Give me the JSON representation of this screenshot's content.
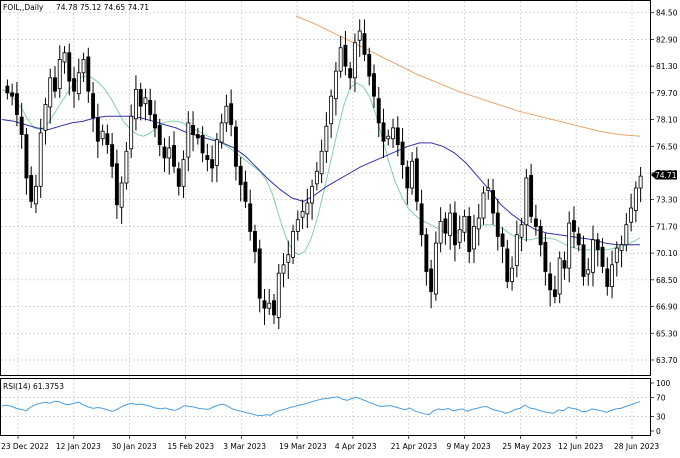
{
  "header": {
    "symbol": "FOIL,,Daily",
    "ohlc": "74.78 75.12 74.65 74.71"
  },
  "rsi_label": "RSI(14) 61.3753",
  "current_price_label": "74.71",
  "chart_data": [
    {
      "type": "candlestick",
      "title": "FOIL,,Daily 74.78 75.12 74.65 74.71",
      "y_ticks": [
        "84.50",
        "82.90",
        "81.30",
        "79.70",
        "78.10",
        "76.50",
        "74.90",
        "73.30",
        "71.70",
        "70.10",
        "68.50",
        "66.90",
        "65.30",
        "63.70"
      ],
      "x_ticks": [
        "23 Dec 2022",
        "12 Jan 2023",
        "30 Jan 2023",
        "15 Feb 2023",
        "3 Mar 2023",
        "19 Mar 2023",
        "4 Apr 2023",
        "21 Apr 2023",
        "9 May 2023",
        "25 May 2023",
        "12 Jun 2023",
        "28 Jun 2023"
      ],
      "ylim": [
        62.8,
        85.2
      ],
      "last_price": 74.71,
      "colors": {
        "bull": "#ffffff",
        "bear": "#000000",
        "ma_fast": "#7fd1b0",
        "ma_mid": "#3333aa",
        "ma_slow": "#e8a46a"
      },
      "candles_close": [
        79.7,
        79.5,
        78.4,
        77.2,
        74.6,
        73.2,
        74.1,
        77.3,
        79.0,
        80.6,
        79.8,
        81.7,
        82.1,
        80.4,
        79.8,
        80.9,
        81.7,
        79.8,
        78.2,
        76.8,
        77.4,
        76.6,
        75.3,
        73.0,
        74.3,
        76.2,
        78.3,
        79.9,
        78.9,
        79.4,
        78.4,
        77.6,
        76.6,
        75.8,
        76.4,
        75.3,
        74.1,
        75.7,
        77.9,
        77.2,
        77.0,
        76.1,
        75.7,
        75.2,
        76.9,
        77.9,
        78.9,
        77.8,
        75.3,
        74.2,
        73.2,
        71.4,
        70.2,
        67.4,
        66.8,
        67.1,
        66.4,
        68.9,
        69.4,
        70.0,
        71.4,
        72.1,
        72.6,
        73.1,
        74.1,
        75.0,
        76.2,
        77.7,
        79.5,
        81.0,
        82.4,
        81.3,
        80.6,
        82.7,
        83.4,
        82.0,
        80.7,
        79.5,
        77.9,
        76.8,
        77.1,
        77.6,
        76.6,
        75.4,
        74.0,
        75.6,
        73.2,
        71.2,
        69.0,
        67.8,
        70.7,
        72.0,
        71.3,
        72.5,
        70.6,
        71.5,
        72.3,
        70.2,
        71.7,
        72.2,
        73.7,
        74.0,
        72.5,
        71.1,
        70.5,
        68.4,
        69.2,
        71.2,
        71.8,
        74.6,
        72.3,
        71.7,
        70.6,
        69.0,
        67.9,
        67.5,
        69.8,
        69.2,
        71.9,
        71.4,
        70.6,
        68.7,
        69.1,
        70.9,
        70.3,
        69.3,
        68.1,
        69.4,
        70.4,
        70.6,
        71.8,
        72.8,
        74.0,
        74.71
      ],
      "ma_fast": [
        79.9,
        79.7,
        79.3,
        78.8,
        78.1,
        77.6,
        77.5,
        77.8,
        78.4,
        79.0,
        79.6,
        80.2,
        80.6,
        80.7,
        80.6,
        80.3,
        79.9,
        79.3,
        78.6,
        77.9,
        77.5,
        77.2,
        77.1,
        77.3,
        77.6,
        77.9,
        78.0,
        78.0,
        77.9,
        77.7,
        77.5,
        77.3,
        77.1,
        76.9,
        76.7,
        76.5,
        76.2,
        75.9,
        75.6,
        75.3,
        75.0,
        74.5,
        73.6,
        72.3,
        71.1,
        70.3,
        70.0,
        70.2,
        71.0,
        72.3,
        73.9,
        75.6,
        77.3,
        78.9,
        80.0,
        80.3,
        80.1,
        79.5,
        78.4,
        77.0,
        75.6,
        74.4,
        73.5,
        72.8,
        72.4,
        72.1,
        71.9,
        71.7,
        71.5,
        71.3,
        71.3,
        71.4,
        71.5,
        71.6,
        71.7,
        71.8,
        71.8,
        71.7,
        71.5,
        71.2,
        71.0,
        70.9,
        70.9,
        71.0,
        71.0,
        71.0,
        70.9,
        70.7,
        70.5,
        70.4,
        70.3,
        70.3,
        70.3,
        70.3,
        70.3,
        70.4,
        70.5,
        70.6,
        70.8,
        71.0
      ],
      "ma_mid": [
        78.1,
        78.0,
        77.8,
        77.6,
        77.5,
        77.7,
        77.9,
        78.0,
        78.2,
        78.3,
        78.3,
        78.3,
        78.2,
        78.0,
        77.8,
        77.6,
        77.3,
        77.1,
        76.9,
        76.7,
        76.4,
        75.9,
        75.2,
        74.5,
        73.9,
        73.4,
        73.2,
        73.6,
        74.1,
        74.5,
        74.9,
        75.3,
        75.6,
        75.9,
        76.2,
        76.5,
        76.7,
        76.7,
        76.5,
        76.1,
        75.5,
        74.7,
        73.9,
        73.0,
        72.4,
        71.9,
        71.5,
        71.3,
        71.2,
        71.1,
        71.0,
        70.9,
        70.7,
        70.6,
        70.6,
        70.6
      ],
      "ma_slow": [
        84.3,
        83.8,
        83.2,
        82.6,
        82.0,
        81.4,
        80.8,
        80.3,
        79.8,
        79.4,
        79.0,
        78.6,
        78.3,
        78.0,
        77.7,
        77.4,
        77.2,
        77.1
      ]
    },
    {
      "type": "line",
      "title": "RSI(14) 61.3753",
      "y_ticks": [
        "100",
        "70",
        "30",
        "0"
      ],
      "ylim": [
        0,
        100
      ],
      "values": [
        52,
        54,
        51,
        47,
        45,
        42,
        50,
        55,
        58,
        60,
        58,
        62,
        61,
        56,
        55,
        58,
        60,
        54,
        50,
        47,
        49,
        47,
        44,
        41,
        45,
        51,
        55,
        58,
        55,
        56,
        54,
        51,
        48,
        46,
        48,
        45,
        43,
        47,
        53,
        51,
        50,
        47,
        46,
        45,
        50,
        54,
        56,
        52,
        46,
        43,
        41,
        38,
        36,
        33,
        32,
        34,
        33,
        40,
        43,
        45,
        49,
        51,
        54,
        56,
        59,
        62,
        65,
        67,
        68,
        70,
        71,
        66,
        64,
        68,
        70,
        66,
        62,
        58,
        54,
        51,
        52,
        53,
        50,
        47,
        44,
        48,
        42,
        39,
        36,
        34,
        42,
        46,
        44,
        47,
        42,
        44,
        46,
        41,
        45,
        47,
        50,
        51,
        46,
        43,
        41,
        37,
        40,
        45,
        47,
        54,
        48,
        46,
        43,
        40,
        38,
        37,
        44,
        42,
        49,
        47,
        45,
        40,
        41,
        46,
        44,
        42,
        39,
        43,
        46,
        47,
        51,
        54,
        58,
        61
      ]
    }
  ]
}
